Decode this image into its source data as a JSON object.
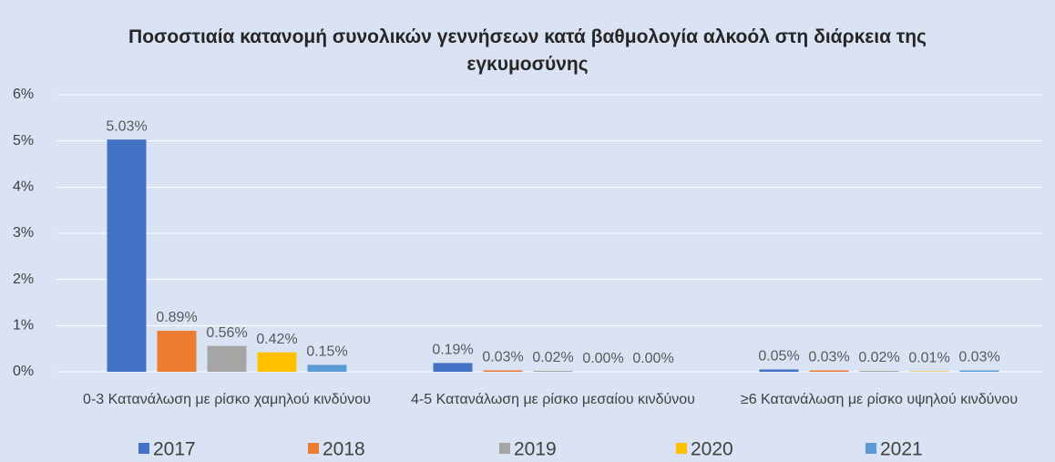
{
  "chart_data": {
    "type": "bar",
    "title": "Ποσοστιαία κατανομή συνολικών γεννήσεων κατά βαθμολογία αλκοόλ στη διάρκεια της εγκυμοσύνης",
    "categories": [
      "0-3 Κατανάλωση με ρίσκο χαμηλού κινδύνου",
      "4-5 Κατανάλωση με ρίσκο μεσαίου κινδύνου",
      "≥6 Κατανάλωση με ρίσκο υψηλού κινδύνου"
    ],
    "series": [
      {
        "name": "2017",
        "color": "#4472c4",
        "values": [
          5.03,
          0.19,
          0.05
        ],
        "value_labels": [
          "5.03%",
          "0.19%",
          "0.05%"
        ]
      },
      {
        "name": "2018",
        "color": "#ed7d31",
        "values": [
          0.89,
          0.03,
          0.03
        ],
        "value_labels": [
          "0.89%",
          "0.03%",
          "0.03%"
        ]
      },
      {
        "name": "2019",
        "color": "#a5a5a5",
        "values": [
          0.56,
          0.02,
          0.02
        ],
        "value_labels": [
          "0.56%",
          "0.02%",
          "0.02%"
        ]
      },
      {
        "name": "2020",
        "color": "#ffc000",
        "values": [
          0.42,
          0.0,
          0.01
        ],
        "value_labels": [
          "0.42%",
          "0.00%",
          "0.01%"
        ]
      },
      {
        "name": "2021",
        "color": "#5b9bd5",
        "values": [
          0.15,
          0.0,
          0.03
        ],
        "value_labels": [
          "0.15%",
          "0.00%",
          "0.03%"
        ]
      }
    ],
    "ylim": [
      0,
      6
    ],
    "yticks": [
      {
        "value": 0,
        "label": "0%"
      },
      {
        "value": 1,
        "label": "1%"
      },
      {
        "value": 2,
        "label": "2%"
      },
      {
        "value": 3,
        "label": "3%"
      },
      {
        "value": 4,
        "label": "4%"
      },
      {
        "value": 5,
        "label": "5%"
      },
      {
        "value": 6,
        "label": "6%"
      }
    ],
    "grid": true,
    "legend": "bottom"
  }
}
